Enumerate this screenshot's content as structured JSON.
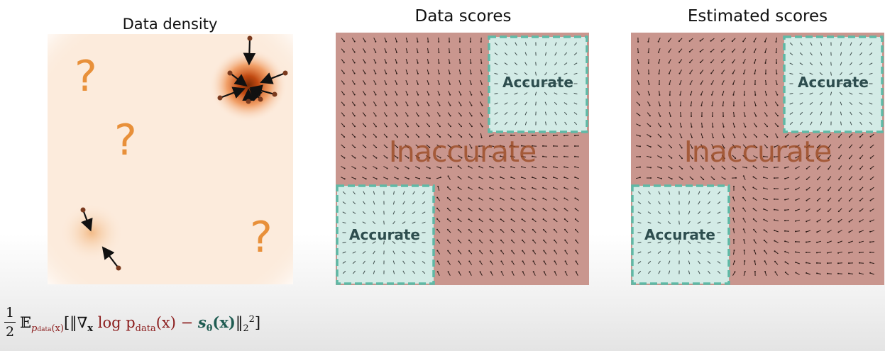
{
  "titles": {
    "density": "Data density",
    "data_scores": "Data scores",
    "estimated_scores": "Estimated scores"
  },
  "labels": {
    "inaccurate": "Inaccurate",
    "accurate": "Accurate",
    "question": "?"
  },
  "formula": {
    "numerator": "1",
    "denominator": "2",
    "expectation": "𝔼",
    "subscript": "p",
    "subscript_data": "data",
    "subscript_arg": "(x)",
    "open": "[‖∇",
    "grad_sub": "x",
    "log_p": " log p",
    "p_sub": "data",
    "p_arg": "(x) − ",
    "model": "s",
    "model_sub": "θ",
    "model_arg": "(x)",
    "norm_close": "‖",
    "norm_sub": "2",
    "norm_sup": "2",
    "close": "]"
  },
  "colors": {
    "density_bg": "#fcebdc",
    "question": "#e8903a",
    "inaccurate_region": "#c9968e",
    "accurate_region": "#d3ebe6",
    "accurate_border": "#5fb9a6"
  }
}
